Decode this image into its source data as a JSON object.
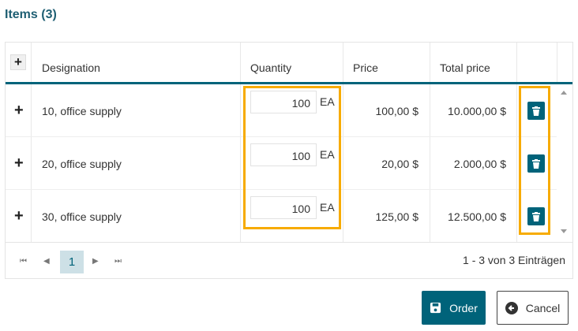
{
  "title": "Items (3)",
  "columns": {
    "designation": "Designation",
    "quantity": "Quantity",
    "price": "Price",
    "total": "Total price"
  },
  "rows": [
    {
      "designation": "10, office supply",
      "quantity": "100",
      "unit": "EA",
      "price": "100,00 $",
      "total": "10.000,00 $"
    },
    {
      "designation": "20, office supply",
      "quantity": "100",
      "unit": "EA",
      "price": "20,00 $",
      "total": "2.000,00 $"
    },
    {
      "designation": "30, office supply",
      "quantity": "100",
      "unit": "EA",
      "price": "125,00 $",
      "total": "12.500,00 $"
    }
  ],
  "pager": {
    "current": "1",
    "info": "1 - 3 von 3 Einträgen"
  },
  "buttons": {
    "order": "Order",
    "cancel": "Cancel"
  },
  "colors": {
    "accent": "#00637a",
    "highlight": "#f7ab00"
  }
}
